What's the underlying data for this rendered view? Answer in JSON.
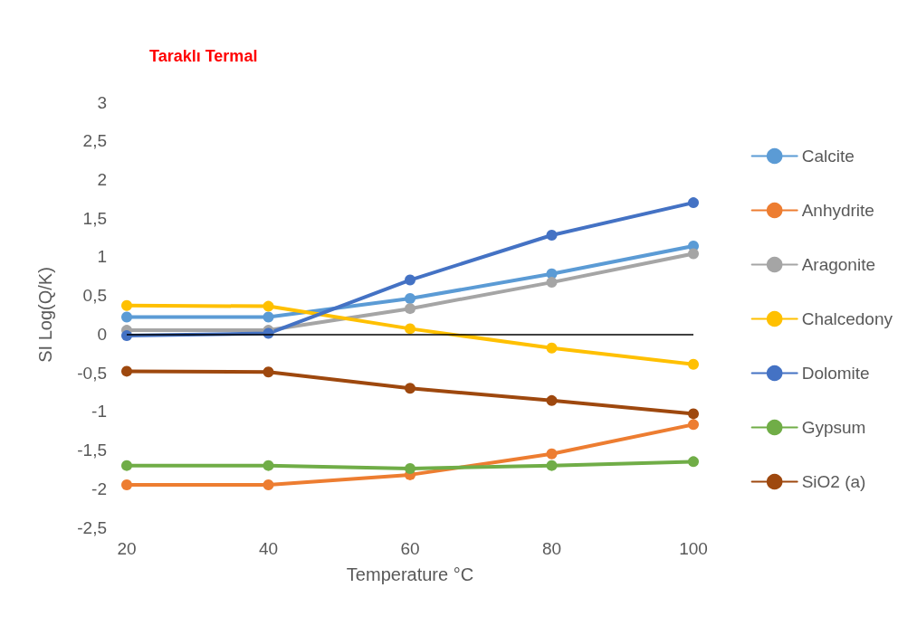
{
  "chart_data": {
    "type": "line",
    "title": "Taraklı Termal",
    "xlabel": "Temperature °C",
    "ylabel": "SI Log(Q/K)",
    "categories": [
      "20",
      "40",
      "60",
      "80",
      "100"
    ],
    "series": [
      {
        "name": "Calcite",
        "color": "#5b9bd5",
        "values": [
          0.22,
          0.22,
          0.46,
          0.78,
          1.14
        ]
      },
      {
        "name": "Anhydrite",
        "color": "#ed7d31",
        "values": [
          -1.95,
          -1.95,
          -1.82,
          -1.55,
          -1.17
        ]
      },
      {
        "name": "Aragonite",
        "color": "#a5a5a5",
        "values": [
          0.05,
          0.05,
          0.33,
          0.67,
          1.04
        ]
      },
      {
        "name": "Chalcedony",
        "color": "#ffc000",
        "values": [
          0.37,
          0.36,
          0.07,
          -0.18,
          -0.39
        ]
      },
      {
        "name": "Dolomite",
        "color": "#4472c4",
        "values": [
          -0.02,
          0.01,
          0.7,
          1.28,
          1.7
        ]
      },
      {
        "name": "Gypsum",
        "color": "#70ad47",
        "values": [
          -1.7,
          -1.7,
          -1.74,
          -1.7,
          -1.65
        ]
      },
      {
        "name": "SiO2 (a)",
        "color": "#9e480e",
        "values": [
          -0.48,
          -0.49,
          -0.7,
          -0.86,
          -1.03
        ]
      }
    ],
    "ylim": [
      -2.5,
      3
    ],
    "yticks": [
      {
        "value": -2.5,
        "label": "-2,5"
      },
      -2,
      {
        "value": -1.5,
        "label": "-1,5"
      },
      -1,
      {
        "value": -0.5,
        "label": "-0,5"
      },
      0,
      {
        "value": 0.5,
        "label": "0,5"
      },
      1,
      {
        "value": 1.5,
        "label": "1,5"
      },
      2,
      {
        "value": 2.5,
        "label": "2,5"
      },
      3
    ],
    "ref_lines": [
      {
        "axis": "y",
        "value": 0,
        "color": "#000000"
      }
    ],
    "grid": false,
    "legend": "right",
    "marker": "circle",
    "line_style": "solid"
  }
}
